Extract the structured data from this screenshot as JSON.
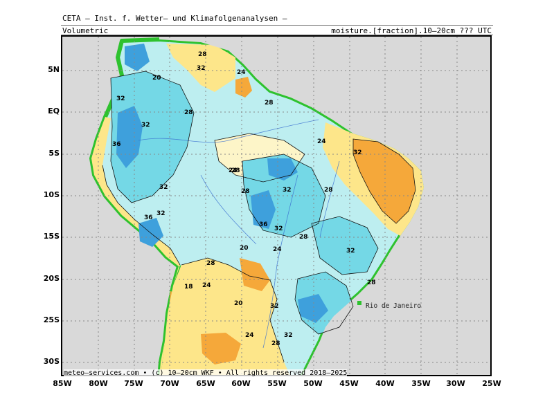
{
  "header": {
    "org": "CETA — Inst. f. Wetter— und Klimafolgenanalysen —",
    "left": "Volumetric",
    "right": "moisture.[fraction].10—20cm ??? UTC"
  },
  "footer": "meteo—services.com • (c) 10—20cm WKF • All rights reserved 2018–2025",
  "map": {
    "lat_labels": [
      "5N",
      "EQ",
      "5S",
      "10S",
      "15S",
      "20S",
      "25S",
      "30S"
    ],
    "lon_labels": [
      "85W",
      "80W",
      "75W",
      "70W",
      "65W",
      "60W",
      "55W",
      "50W",
      "45W",
      "40W",
      "35W",
      "30W",
      "25W"
    ],
    "city": "Rio de Janeiro",
    "contour_labels": [
      "28",
      "32",
      "20",
      "24",
      "32",
      "32",
      "28",
      "36",
      "32",
      "36",
      "32",
      "28",
      "24",
      "32",
      "28",
      "24",
      "28",
      "32",
      "36",
      "32",
      "28",
      "20",
      "24",
      "28",
      "32",
      "28",
      "18",
      "24",
      "20",
      "32",
      "24",
      "28",
      "32",
      "28"
    ],
    "colors": {
      "ocean": "#d9d9d9",
      "dry_orange": "#f5a83a",
      "dry_yellow": "#fde68a",
      "mid_cream": "#fdf5c8",
      "moist_light": "#bdeef0",
      "moist_cyan": "#74d8e6",
      "wet_blue": "#3ea0dc",
      "coast_green": "#2ec22e"
    }
  }
}
